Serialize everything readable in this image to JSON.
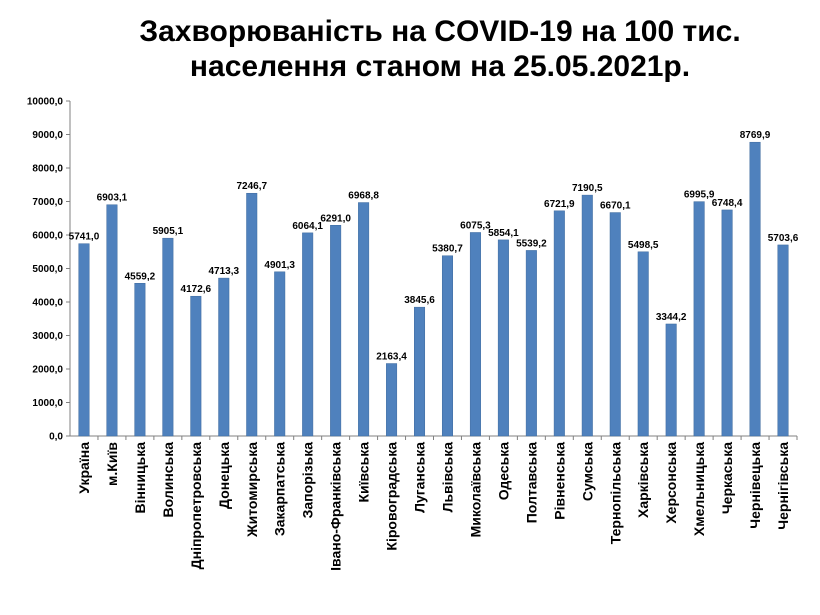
{
  "chart_data": {
    "type": "bar",
    "title_lines": [
      "Захворюваність на COVID-19 на 100 тис.",
      "населення станом на 25.05.2021р."
    ],
    "categories": [
      "Україна",
      "м.Київ",
      "Вінницька",
      "Волинська",
      "Дніпропетровська",
      "Донецька",
      "Житомирська",
      "Закарпатська",
      "Запорізька",
      "Івано-Франківська",
      "Київська",
      "Кіровоградська",
      "Луганська",
      "Львівська",
      "Миколаївська",
      "Одеська",
      "Полтавська",
      "Рівненська",
      "Сумська",
      "Тернопільська",
      "Харківська",
      "Херсонська",
      "Хмельницька",
      "Черкаська",
      "Чернівецька",
      "Чернігівська"
    ],
    "values": [
      5741.0,
      6903.1,
      4559.2,
      5905.1,
      4172.6,
      4713.3,
      7246.7,
      4901.3,
      6064.1,
      6291.0,
      6968.8,
      2163.4,
      3845.6,
      5380.7,
      6075.3,
      5854.1,
      5539.2,
      6721.9,
      7190.5,
      6670.1,
      5498.5,
      3344.2,
      6995.9,
      6748.4,
      8769.9,
      5703.6
    ],
    "data_labels": [
      "5741,0",
      "6903,1",
      "4559,2",
      "5905,1",
      "4172,6",
      "4713,3",
      "7246,7",
      "4901,3",
      "6064,1",
      "6291,0",
      "6968,8",
      "2163,4",
      "3845,6",
      "5380,7",
      "6075,3",
      "5854,1",
      "5539,2",
      "6721,9",
      "7190,5",
      "6670,1",
      "5498,5",
      "3344,2",
      "6995,9",
      "6748,4",
      "8769,9",
      "5703,6"
    ],
    "yticks": [
      0,
      1000,
      2000,
      3000,
      4000,
      5000,
      6000,
      7000,
      8000,
      9000,
      10000
    ],
    "ytick_labels": [
      "0,0",
      "1000,0",
      "2000,0",
      "3000,0",
      "4000,0",
      "5000,0",
      "6000,0",
      "7000,0",
      "8000,0",
      "9000,0",
      "10000,0"
    ],
    "ylim": [
      0,
      10000
    ],
    "xlabel": "",
    "ylabel": "",
    "grid": false,
    "legend": "none",
    "colors": {
      "bar": "#4f81bd",
      "bar_edge": "#3d6a9e",
      "axis": "#808080"
    }
  }
}
